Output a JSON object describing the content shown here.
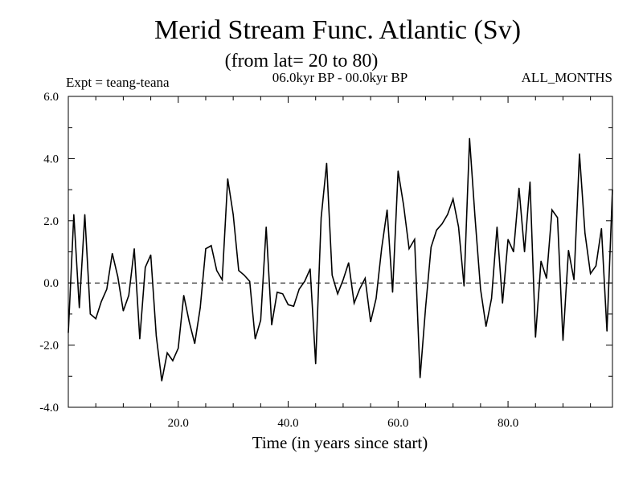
{
  "chart_data": {
    "type": "line",
    "title": "Merid Stream Func. Atlantic (Sv)",
    "subtitle": "(from lat= 20 to 80)",
    "experiment": "Expt = teang-teana",
    "period": "06.0kyr BP - 00.0kyr BP",
    "months": "ALL_MONTHS",
    "xlabel": "Time (in years since start)",
    "ylabel": "",
    "xlim": [
      0,
      99
    ],
    "ylim": [
      -4.0,
      6.0
    ],
    "xticks": [
      20,
      40,
      60,
      80
    ],
    "xtick_labels": [
      "20.0",
      "40.0",
      "60.0",
      "80.0"
    ],
    "yticks": [
      -4,
      -2,
      0,
      2,
      4,
      6
    ],
    "ytick_labels": [
      "-4.0",
      "-2.0",
      "0.0",
      "2.0",
      "4.0",
      "6.0"
    ],
    "reference_line": {
      "y": 0.0,
      "style": "dashed"
    },
    "series": [
      {
        "name": "Merid Stream Func. Atlantic",
        "x": [
          0,
          1,
          2,
          3,
          4,
          5,
          6,
          7,
          8,
          9,
          10,
          11,
          12,
          13,
          14,
          15,
          16,
          17,
          18,
          19,
          20,
          21,
          22,
          23,
          24,
          25,
          26,
          27,
          28,
          29,
          30,
          31,
          32,
          33,
          34,
          35,
          36,
          37,
          38,
          39,
          40,
          41,
          42,
          43,
          44,
          45,
          46,
          47,
          48,
          49,
          50,
          51,
          52,
          53,
          54,
          55,
          56,
          57,
          58,
          59,
          60,
          61,
          62,
          63,
          64,
          65,
          66,
          67,
          68,
          69,
          70,
          71,
          72,
          73,
          74,
          75,
          76,
          77,
          78,
          79,
          80,
          81,
          82,
          83,
          84,
          85,
          86,
          87,
          88,
          89,
          90,
          91,
          92,
          93,
          94,
          95,
          96,
          97,
          98,
          99
        ],
        "values": [
          -1.6,
          2.2,
          -0.8,
          2.2,
          -1.0,
          -1.15,
          -0.6,
          -0.2,
          0.95,
          0.2,
          -0.9,
          -0.4,
          1.1,
          -1.8,
          0.5,
          0.9,
          -1.7,
          -3.15,
          -2.25,
          -2.5,
          -2.1,
          -0.4,
          -1.25,
          -1.95,
          -0.8,
          1.1,
          1.2,
          0.4,
          0.1,
          3.35,
          2.2,
          0.4,
          0.25,
          0.05,
          -1.8,
          -1.2,
          1.8,
          -1.35,
          -0.3,
          -0.35,
          -0.7,
          -0.75,
          -0.2,
          0.05,
          0.45,
          -2.6,
          2.1,
          3.85,
          0.25,
          -0.35,
          0.1,
          0.65,
          -0.65,
          -0.2,
          0.15,
          -1.25,
          -0.5,
          1.1,
          2.35,
          -0.3,
          3.6,
          2.5,
          1.1,
          1.4,
          -3.05,
          -0.8,
          1.15,
          1.7,
          1.9,
          2.2,
          2.7,
          1.8,
          -0.1,
          4.65,
          2.1,
          -0.2,
          -1.4,
          -0.5,
          1.8,
          -0.65,
          1.4,
          1.0,
          3.05,
          1.0,
          3.25,
          -1.75,
          0.7,
          0.15,
          2.35,
          2.1,
          -1.85,
          1.05,
          0.1,
          4.15,
          1.6,
          0.3,
          0.55,
          1.75,
          -1.55,
          3.0
        ]
      }
    ]
  }
}
